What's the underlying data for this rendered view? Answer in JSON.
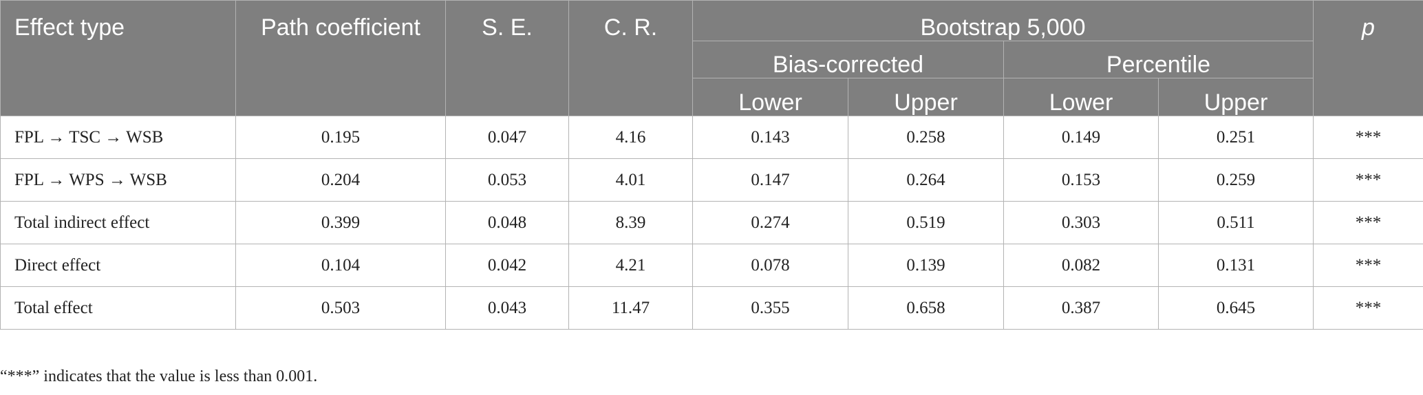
{
  "header": {
    "effect_type": "Effect type",
    "path_coefficient": "Path coefficient",
    "se": "S. E.",
    "cr": "C. R.",
    "bootstrap": "Bootstrap 5,000",
    "bias_corrected": "Bias-corrected",
    "percentile": "Percentile",
    "bc_lower": "Lower",
    "bc_upper": "Upper",
    "pc_lower": "Lower",
    "pc_upper": "Upper",
    "p": "p"
  },
  "rows": [
    {
      "effect": "FPL → TSC → WSB",
      "coef": "0.195",
      "se": "0.047",
      "cr": "4.16",
      "bc_lower": "0.143",
      "bc_upper": "0.258",
      "pc_lower": "0.149",
      "pc_upper": "0.251",
      "p": "***"
    },
    {
      "effect": "FPL → WPS → WSB",
      "coef": "0.204",
      "se": "0.053",
      "cr": "4.01",
      "bc_lower": "0.147",
      "bc_upper": "0.264",
      "pc_lower": "0.153",
      "pc_upper": "0.259",
      "p": "***"
    },
    {
      "effect": "Total indirect effect",
      "coef": "0.399",
      "se": "0.048",
      "cr": "8.39",
      "bc_lower": "0.274",
      "bc_upper": "0.519",
      "pc_lower": "0.303",
      "pc_upper": "0.511",
      "p": "***"
    },
    {
      "effect": "Direct effect",
      "coef": "0.104",
      "se": "0.042",
      "cr": "4.21",
      "bc_lower": "0.078",
      "bc_upper": "0.139",
      "pc_lower": "0.082",
      "pc_upper": "0.131",
      "p": "***"
    },
    {
      "effect": "Total effect",
      "coef": "0.503",
      "se": "0.043",
      "cr": "11.47",
      "bc_lower": "0.355",
      "bc_upper": "0.658",
      "pc_lower": "0.387",
      "pc_upper": "0.645",
      "p": "***"
    }
  ],
  "footnote": "“***” indicates that the value is less than 0.001."
}
